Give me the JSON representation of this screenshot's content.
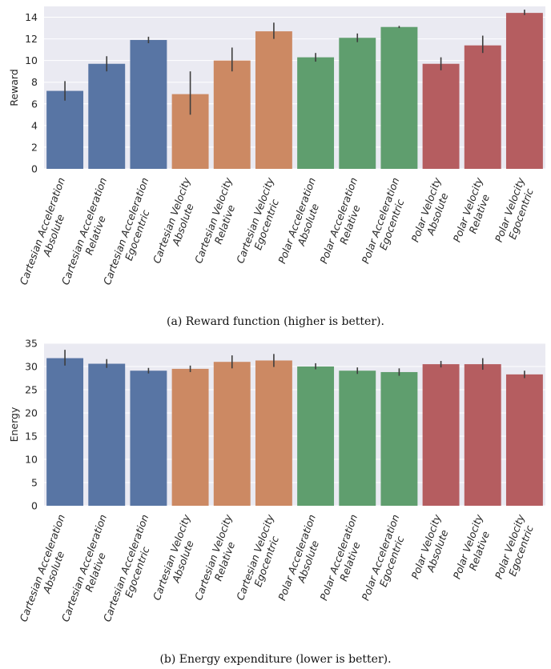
{
  "chart_data": [
    {
      "type": "bar",
      "caption": "(a) Reward function (higher is better).",
      "ylabel": "Reward",
      "ylim": [
        0,
        15
      ],
      "yticks": [
        0,
        2,
        4,
        6,
        8,
        10,
        12,
        14
      ],
      "grid": true,
      "categories": [
        [
          "Cartesian Acceleration",
          "Absolute"
        ],
        [
          "Cartesian Acceleration",
          "Relative"
        ],
        [
          "Cartesian Acceleration",
          "Egocentric"
        ],
        [
          "Cartesian Velocity",
          "Absolute"
        ],
        [
          "Cartesian Velocity",
          "Relative"
        ],
        [
          "Cartesian Velocity",
          "Egocentric"
        ],
        [
          "Polar Acceleration",
          "Absolute"
        ],
        [
          "Polar Acceleration",
          "Relative"
        ],
        [
          "Polar Acceleration",
          "Egocentric"
        ],
        [
          "Polar Velocity",
          "Absolute"
        ],
        [
          "Polar Velocity",
          "Relative"
        ],
        [
          "Polar Velocity",
          "Egocentric"
        ]
      ],
      "values": [
        7.2,
        9.7,
        11.9,
        6.9,
        10.0,
        12.7,
        10.3,
        12.1,
        13.1,
        9.7,
        11.4,
        14.4
      ],
      "error_low": [
        6.3,
        9.0,
        11.6,
        5.0,
        9.0,
        12.0,
        9.9,
        11.7,
        13.0,
        9.1,
        10.7,
        14.2
      ],
      "error_high": [
        8.1,
        10.4,
        12.2,
        9.0,
        11.2,
        13.5,
        10.7,
        12.5,
        13.2,
        10.3,
        12.3,
        14.7
      ],
      "colors": [
        "#5875a4",
        "#5875a4",
        "#5875a4",
        "#cc8963",
        "#cc8963",
        "#cc8963",
        "#5f9e6e",
        "#5f9e6e",
        "#5f9e6e",
        "#b55d60",
        "#b55d60",
        "#b55d60"
      ]
    },
    {
      "type": "bar",
      "caption": "(b) Energy expenditure (lower is better).",
      "ylabel": "Energy",
      "ylim": [
        0,
        35
      ],
      "yticks": [
        0,
        5,
        10,
        15,
        20,
        25,
        30,
        35
      ],
      "grid": true,
      "categories": [
        [
          "Cartesian Acceleration",
          "Absolute"
        ],
        [
          "Cartesian Acceleration",
          "Relative"
        ],
        [
          "Cartesian Acceleration",
          "Egocentric"
        ],
        [
          "Cartesian Velocity",
          "Absolute"
        ],
        [
          "Cartesian Velocity",
          "Relative"
        ],
        [
          "Cartesian Velocity",
          "Egocentric"
        ],
        [
          "Polar Acceleration",
          "Absolute"
        ],
        [
          "Polar Acceleration",
          "Relative"
        ],
        [
          "Polar Acceleration",
          "Egocentric"
        ],
        [
          "Polar Velocity",
          "Absolute"
        ],
        [
          "Polar Velocity",
          "Relative"
        ],
        [
          "Polar Velocity",
          "Egocentric"
        ]
      ],
      "values": [
        31.8,
        30.6,
        29.1,
        29.5,
        31.0,
        31.3,
        30.0,
        29.1,
        28.8,
        30.5,
        30.5,
        28.3
      ],
      "error_low": [
        30.2,
        29.7,
        28.5,
        28.8,
        29.6,
        29.9,
        29.4,
        28.4,
        28.0,
        29.8,
        29.3,
        27.5
      ],
      "error_high": [
        33.6,
        31.6,
        29.7,
        30.2,
        32.4,
        32.7,
        30.7,
        29.8,
        29.6,
        31.2,
        31.8,
        29.1
      ],
      "colors": [
        "#5875a4",
        "#5875a4",
        "#5875a4",
        "#cc8963",
        "#cc8963",
        "#cc8963",
        "#5f9e6e",
        "#5f9e6e",
        "#5f9e6e",
        "#b55d60",
        "#b55d60",
        "#b55d60"
      ]
    }
  ]
}
